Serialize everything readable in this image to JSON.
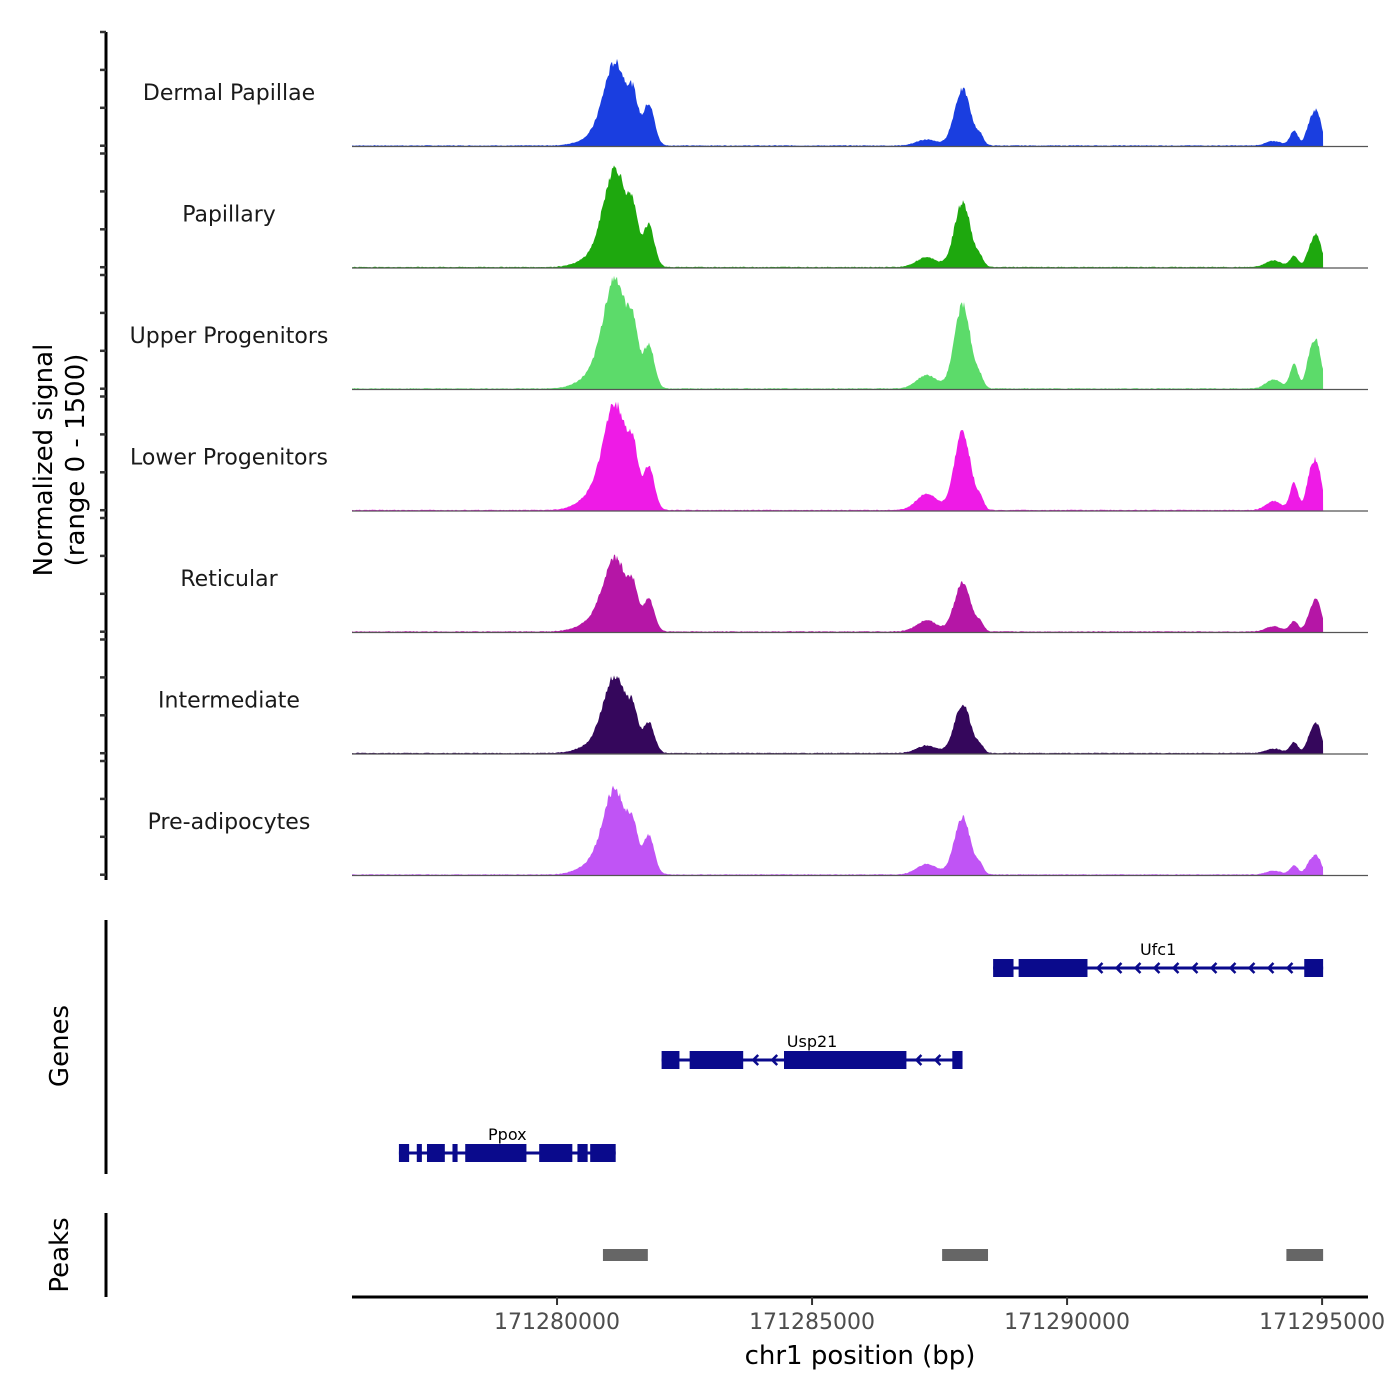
{
  "chart_data": {
    "type": "area",
    "title": "",
    "ylabel": "Normalized signal\n(range 0 - 1500)",
    "ylabel_lines": [
      "Normalized signal",
      "(range 0 - 1500)"
    ],
    "yrange": [
      0,
      1500
    ],
    "xlabel": "chr1 position (bp)",
    "xlim": [
      171275980,
      171295900
    ],
    "data_end": 171295020,
    "xticks": [
      171280000,
      171285000,
      171290000,
      171295000
    ],
    "xtick_labels": [
      "171280000",
      "171285000",
      "171290000",
      "171295000"
    ],
    "grid": false,
    "legend": "none",
    "tracks": [
      {
        "name": "Dermal Papillae",
        "color": "#1A3EE0",
        "peaks": [
          [
            171280750,
            100,
            300
          ],
          [
            171281150,
            1070,
            230
          ],
          [
            171281500,
            430,
            90
          ],
          [
            171281800,
            540,
            110
          ],
          [
            171287250,
            80,
            200
          ],
          [
            171287950,
            750,
            160
          ],
          [
            171288300,
            110,
            70
          ],
          [
            171294050,
            60,
            150
          ],
          [
            171294450,
            200,
            80
          ],
          [
            171294750,
            220,
            80
          ],
          [
            171294900,
            430,
            90
          ]
        ]
      },
      {
        "name": "Papillary",
        "color": "#1EA80E",
        "peaks": [
          [
            171280750,
            130,
            300
          ],
          [
            171281150,
            1270,
            230
          ],
          [
            171281500,
            460,
            90
          ],
          [
            171281800,
            540,
            110
          ],
          [
            171287250,
            130,
            200
          ],
          [
            171287950,
            860,
            160
          ],
          [
            171288300,
            100,
            70
          ],
          [
            171294050,
            90,
            150
          ],
          [
            171294450,
            150,
            80
          ],
          [
            171294750,
            170,
            80
          ],
          [
            171294900,
            410,
            90
          ]
        ]
      },
      {
        "name": "Upper Progenitors",
        "color": "#5CDB6A",
        "peaks": [
          [
            171280750,
            180,
            300
          ],
          [
            171281150,
            1400,
            230
          ],
          [
            171281500,
            560,
            90
          ],
          [
            171281800,
            560,
            110
          ],
          [
            171287250,
            180,
            200
          ],
          [
            171287950,
            1110,
            160
          ],
          [
            171288300,
            110,
            70
          ],
          [
            171294050,
            120,
            150
          ],
          [
            171294450,
            320,
            80
          ],
          [
            171294750,
            330,
            80
          ],
          [
            171294900,
            580,
            90
          ]
        ]
      },
      {
        "name": "Lower Progenitors",
        "color": "#EE1BE6",
        "peaks": [
          [
            171280750,
            200,
            300
          ],
          [
            171281150,
            1340,
            230
          ],
          [
            171281500,
            560,
            90
          ],
          [
            171281800,
            560,
            110
          ],
          [
            171287250,
            220,
            200
          ],
          [
            171287950,
            1040,
            160
          ],
          [
            171288300,
            130,
            70
          ],
          [
            171294050,
            120,
            150
          ],
          [
            171294450,
            360,
            80
          ],
          [
            171294750,
            360,
            80
          ],
          [
            171294900,
            590,
            90
          ]
        ]
      },
      {
        "name": "Reticular",
        "color": "#B516A6",
        "peaks": [
          [
            171280750,
            140,
            300
          ],
          [
            171281150,
            930,
            230
          ],
          [
            171281500,
            400,
            90
          ],
          [
            171281800,
            420,
            110
          ],
          [
            171287250,
            150,
            200
          ],
          [
            171287950,
            650,
            160
          ],
          [
            171288300,
            100,
            70
          ],
          [
            171294050,
            70,
            150
          ],
          [
            171294450,
            140,
            80
          ],
          [
            171294750,
            170,
            80
          ],
          [
            171294900,
            400,
            90
          ]
        ]
      },
      {
        "name": "Intermediate",
        "color": "#35075C",
        "peaks": [
          [
            171280750,
            110,
            300
          ],
          [
            171281150,
            990,
            230
          ],
          [
            171281500,
            360,
            90
          ],
          [
            171281800,
            390,
            110
          ],
          [
            171287250,
            100,
            200
          ],
          [
            171287950,
            650,
            160
          ],
          [
            171288300,
            80,
            70
          ],
          [
            171294050,
            60,
            150
          ],
          [
            171294450,
            140,
            80
          ],
          [
            171294750,
            160,
            80
          ],
          [
            171294900,
            370,
            90
          ]
        ]
      },
      {
        "name": "Pre-adipocytes",
        "color": "#C054F5",
        "peaks": [
          [
            171280750,
            150,
            300
          ],
          [
            171281150,
            1080,
            230
          ],
          [
            171281500,
            390,
            90
          ],
          [
            171281800,
            510,
            110
          ],
          [
            171287250,
            140,
            200
          ],
          [
            171287950,
            760,
            160
          ],
          [
            171288300,
            100,
            70
          ],
          [
            171294050,
            50,
            150
          ],
          [
            171294450,
            120,
            80
          ],
          [
            171294750,
            130,
            80
          ],
          [
            171294900,
            230,
            90
          ]
        ]
      }
    ],
    "genes_track": {
      "label": "Genes",
      "color": "#0A0A8C",
      "genes": [
        {
          "name": "Ufc1",
          "strand": "-",
          "start": 171288550,
          "end": 171295020,
          "row": 0,
          "exons": [
            [
              171288550,
              171288950
            ],
            [
              171289050,
              171290400
            ],
            [
              171294650,
              171295020
            ]
          ]
        },
        {
          "name": "Usp21",
          "strand": "-",
          "start": 171282050,
          "end": 171287950,
          "row": 1,
          "exons": [
            [
              171282050,
              171282400
            ],
            [
              171282600,
              171283650
            ],
            [
              171284450,
              171286850
            ],
            [
              171287750,
              171287950
            ]
          ]
        },
        {
          "name": "Ppox",
          "strand": "-",
          "start": 171276900,
          "end": 171281150,
          "row": 2,
          "exons": [
            [
              171276900,
              171277100
            ],
            [
              171277250,
              171277350
            ],
            [
              171277450,
              171277800
            ],
            [
              171277950,
              171278050
            ],
            [
              171278200,
              171279400
            ],
            [
              171279650,
              171280300
            ],
            [
              171280400,
              171280600
            ],
            [
              171280650,
              171281150
            ]
          ]
        }
      ]
    },
    "peaks_track": {
      "label": "Peaks",
      "color": "#666666",
      "regions": [
        [
          171280900,
          171281780
        ],
        [
          171287550,
          171288450
        ],
        [
          171294300,
          171295020
        ]
      ]
    }
  }
}
